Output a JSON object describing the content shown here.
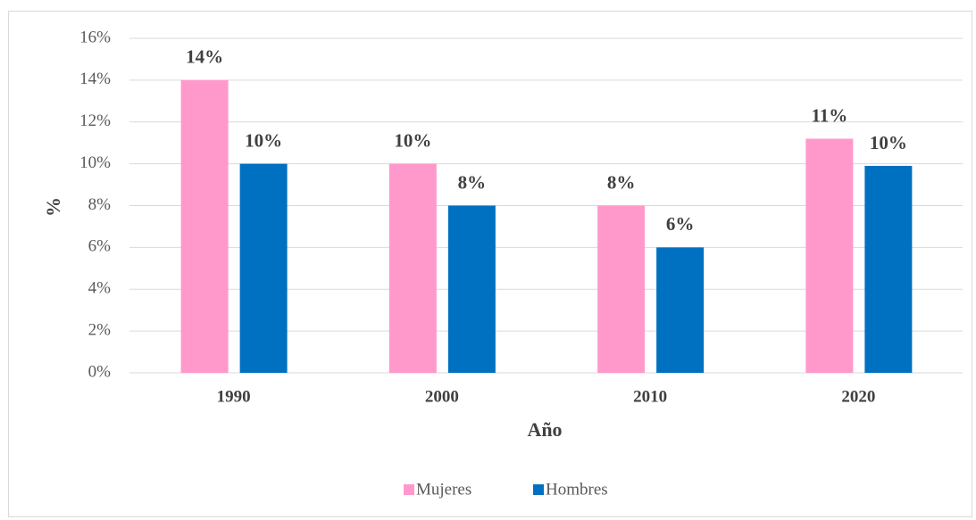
{
  "chart_data": {
    "type": "bar",
    "xlabel": "Año",
    "ylabel": "%",
    "categories": [
      "1990",
      "2000",
      "2010",
      "2020"
    ],
    "series": [
      {
        "name": "Mujeres",
        "color": "#ff99cc",
        "values": [
          14,
          10,
          8,
          11.2
        ],
        "value_labels": [
          "14%",
          "10%",
          "8%",
          "11%"
        ]
      },
      {
        "name": "Hombres",
        "color": "#0070c0",
        "values": [
          10,
          8,
          6,
          9.9
        ],
        "value_labels": [
          "10%",
          "8%",
          "6%",
          "10%"
        ]
      }
    ],
    "ylim": [
      0,
      16
    ],
    "yticks": [
      {
        "value": 0,
        "label": "0%"
      },
      {
        "value": 2,
        "label": "2%"
      },
      {
        "value": 4,
        "label": "4%"
      },
      {
        "value": 6,
        "label": "6%"
      },
      {
        "value": 8,
        "label": "8%"
      },
      {
        "value": 10,
        "label": "10%"
      },
      {
        "value": 12,
        "label": "12%"
      },
      {
        "value": 14,
        "label": "14%"
      },
      {
        "value": 16,
        "label": "16%"
      }
    ],
    "grid": true,
    "legend": "bottom"
  }
}
